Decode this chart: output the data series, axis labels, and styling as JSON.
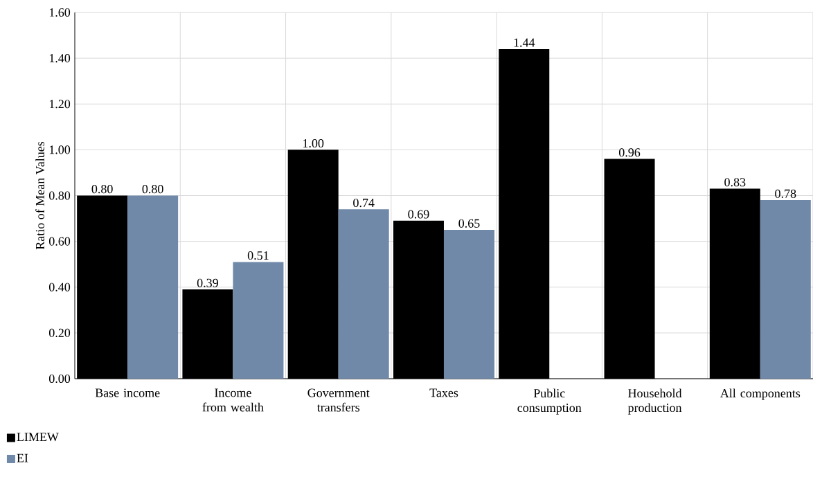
{
  "chart_data": {
    "type": "bar",
    "ylabel": "Ratio of Mean Values",
    "categories": [
      "Base income",
      "Income from wealth",
      "Government transfers",
      "Taxes",
      "Public consumption",
      "Household production",
      "All components"
    ],
    "series": [
      {
        "name": "LIMEW",
        "color": "#000000",
        "values": [
          0.8,
          0.39,
          1.0,
          0.69,
          1.44,
          0.96,
          0.83
        ],
        "value_labels": [
          "0.80",
          "0.39",
          "1.00",
          "0.69",
          "1.44",
          "0.96",
          "0.83"
        ]
      },
      {
        "name": "EI",
        "color": "#7089a9",
        "values": [
          0.8,
          0.51,
          0.74,
          0.65,
          null,
          null,
          0.78
        ],
        "value_labels": [
          "0.80",
          "0.51",
          "0.74",
          "0.65",
          null,
          null,
          "0.78"
        ]
      }
    ],
    "ylim": [
      0,
      1.6
    ],
    "yticks": [
      {
        "value": 0,
        "label": "0.00"
      },
      {
        "value": 0.2,
        "label": "0.20"
      },
      {
        "value": 0.4,
        "label": "0.40"
      },
      {
        "value": 0.6,
        "label": "0.60"
      },
      {
        "value": 0.8,
        "label": "0.80"
      },
      {
        "value": 1.0,
        "label": "1.00"
      },
      {
        "value": 1.2,
        "label": "1.20"
      },
      {
        "value": 1.4,
        "label": "1.40"
      },
      {
        "value": 1.6,
        "label": "1.60"
      }
    ],
    "grid": true,
    "legend": "bottom"
  }
}
